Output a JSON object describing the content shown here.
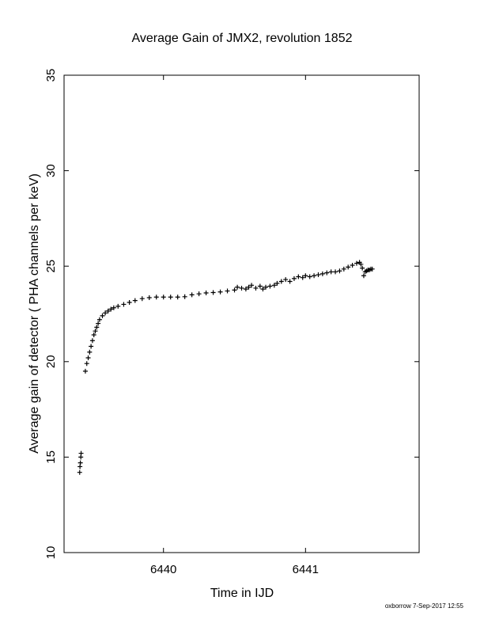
{
  "chart_data": {
    "type": "scatter",
    "title": "Average Gain of JMX2, revolution 1852",
    "xlabel": "Time in IJD",
    "ylabel": "Average gain of detector ( PHA channels per keV)",
    "xlim": [
      6439.3,
      6441.8
    ],
    "ylim": [
      10,
      35
    ],
    "x_ticks": [
      6440,
      6441
    ],
    "y_ticks": [
      10,
      15,
      20,
      25,
      30,
      35
    ],
    "grid": false,
    "marker": "+",
    "series": [
      {
        "x": [
          6439.41,
          6439.412,
          6439.415,
          6439.418,
          6439.42,
          6439.45,
          6439.46,
          6439.47,
          6439.48,
          6439.49,
          6439.5,
          6439.51,
          6439.52,
          6439.53,
          6439.54,
          6439.55,
          6439.57,
          6439.59,
          6439.61,
          6439.63,
          6439.65,
          6439.68,
          6439.72,
          6439.76,
          6439.8,
          6439.85,
          6439.9,
          6439.95,
          6440.0,
          6440.05,
          6440.1,
          6440.15,
          6440.2,
          6440.25,
          6440.3,
          6440.35,
          6440.4,
          6440.45,
          6440.5,
          6440.52,
          6440.55,
          6440.58,
          6440.6,
          6440.62,
          6440.65,
          6440.68,
          6440.7,
          6440.72,
          6440.75,
          6440.78,
          6440.8,
          6440.83,
          6440.86,
          6440.89,
          6440.92,
          6440.95,
          6440.98,
          6441.0,
          6441.03,
          6441.06,
          6441.09,
          6441.12,
          6441.15,
          6441.18,
          6441.21,
          6441.24,
          6441.27,
          6441.3,
          6441.33,
          6441.36,
          6441.38,
          6441.39,
          6441.4,
          6441.41,
          6441.42,
          6441.43,
          6441.44,
          6441.45,
          6441.46,
          6441.47
        ],
        "y": [
          14.2,
          14.5,
          14.7,
          15.0,
          15.2,
          19.5,
          19.9,
          20.2,
          20.5,
          20.8,
          21.1,
          21.4,
          21.6,
          21.8,
          22.0,
          22.2,
          22.4,
          22.55,
          22.65,
          22.75,
          22.82,
          22.9,
          23.0,
          23.1,
          23.2,
          23.3,
          23.35,
          23.38,
          23.38,
          23.38,
          23.38,
          23.4,
          23.5,
          23.55,
          23.6,
          23.62,
          23.65,
          23.7,
          23.75,
          23.9,
          23.85,
          23.8,
          23.9,
          24.0,
          23.85,
          23.95,
          23.8,
          23.9,
          23.95,
          24.0,
          24.1,
          24.2,
          24.3,
          24.2,
          24.35,
          24.45,
          24.4,
          24.5,
          24.45,
          24.5,
          24.55,
          24.6,
          24.65,
          24.7,
          24.7,
          24.75,
          24.85,
          24.95,
          25.05,
          25.15,
          25.2,
          25.1,
          24.9,
          24.5,
          24.7,
          24.75,
          24.8,
          24.8,
          24.85,
          24.85
        ]
      }
    ]
  },
  "footer": {
    "credit": "oxborrow  7-Sep-2017 12:55"
  }
}
